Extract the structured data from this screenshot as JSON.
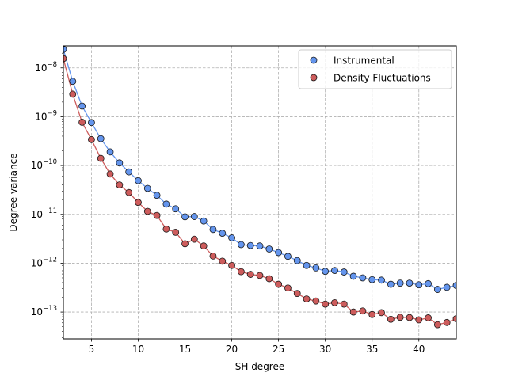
{
  "chart_data": {
    "type": "scatter",
    "xlabel": "SH degree",
    "ylabel": "Degree variance",
    "xlim": [
      2,
      44
    ],
    "ylim_log10": [
      -13.55,
      -7.55
    ],
    "yscale": "log",
    "grid": true,
    "legend_position": "top-right",
    "x_ticks": [
      5,
      10,
      15,
      20,
      25,
      30,
      35,
      40
    ],
    "y_ticks": [
      {
        "exp": -8,
        "base": "10",
        "sup": "−8"
      },
      {
        "exp": -9,
        "base": "10",
        "sup": "−9"
      },
      {
        "exp": -10,
        "base": "10",
        "sup": "−10"
      },
      {
        "exp": -11,
        "base": "10",
        "sup": "−11"
      },
      {
        "exp": -12,
        "base": "10",
        "sup": "−12"
      },
      {
        "exp": -13,
        "base": "10",
        "sup": "−13"
      }
    ],
    "x": [
      2,
      3,
      4,
      5,
      6,
      7,
      8,
      9,
      10,
      11,
      12,
      13,
      14,
      15,
      16,
      17,
      18,
      19,
      20,
      21,
      22,
      23,
      24,
      25,
      26,
      27,
      28,
      29,
      30,
      31,
      32,
      33,
      34,
      35,
      36,
      37,
      38,
      39,
      40,
      41,
      42,
      43,
      44
    ],
    "series": [
      {
        "name": "Instrumental",
        "color": "#6495ed",
        "line_color": "#6495ed",
        "values": [
          2.4e-08,
          5.3e-09,
          1.65e-09,
          7.6e-10,
          3.55e-10,
          1.9e-10,
          1.13e-10,
          7.4e-11,
          4.9e-11,
          3.4e-11,
          2.45e-11,
          1.62e-11,
          1.3e-11,
          8.9e-12,
          9e-12,
          7.3e-12,
          4.9e-12,
          4.1e-12,
          3.3e-12,
          2.4e-12,
          2.3e-12,
          2.25e-12,
          1.95e-12,
          1.65e-12,
          1.38e-12,
          1.13e-12,
          9e-13,
          8e-13,
          6.8e-13,
          7.1e-13,
          6.6e-13,
          5.4e-13,
          5e-13,
          4.6e-13,
          4.5e-13,
          3.7e-13,
          3.9e-13,
          3.9e-13,
          3.6e-13,
          3.8e-13,
          2.9e-13,
          3.2e-13,
          3.5e-13
        ]
      },
      {
        "name": "Density Fluctuations",
        "color": "#cd5c5c",
        "line_color": "#cd5c5c",
        "values": [
          1.55e-08,
          2.9e-09,
          7.7e-10,
          3.4e-10,
          1.4e-10,
          6.7e-11,
          4e-11,
          2.8e-11,
          1.75e-11,
          1.15e-11,
          9.5e-12,
          5e-12,
          4.3e-12,
          2.5e-12,
          3.1e-12,
          2.25e-12,
          1.4e-12,
          1.1e-12,
          9e-13,
          6.7e-13,
          5.9e-13,
          5.6e-13,
          4.8e-13,
          3.7e-13,
          3.1e-13,
          2.4e-13,
          1.85e-13,
          1.68e-13,
          1.45e-13,
          1.55e-13,
          1.45e-13,
          1e-13,
          1.05e-13,
          8.9e-14,
          9.7e-14,
          7.1e-14,
          7.8e-14,
          7.7e-14,
          6.9e-14,
          7.6e-14,
          5.5e-14,
          6.1e-14,
          7.3e-14
        ]
      }
    ]
  }
}
